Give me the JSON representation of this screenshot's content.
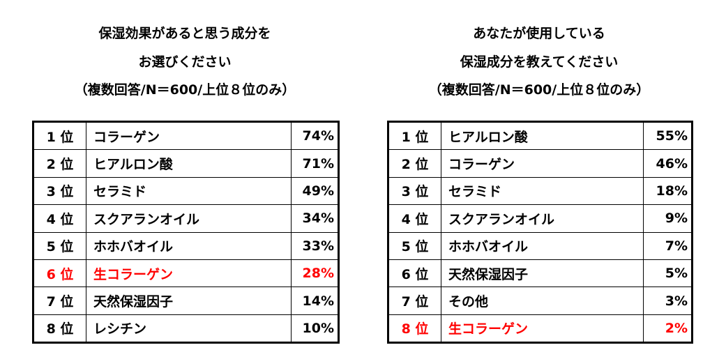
{
  "highlight_color": "#ff0000",
  "left": {
    "title_line1": "保湿効果があると思う成分を",
    "title_line2": "お選びください",
    "title_line3": "（複数回答/N＝600/上位８位のみ）",
    "rows": [
      {
        "rank": "1 位",
        "name": "コラーゲン",
        "pct": "74%",
        "highlight": false
      },
      {
        "rank": "2 位",
        "name": "ヒアルロン酸",
        "pct": "71%",
        "highlight": false
      },
      {
        "rank": "3 位",
        "name": "セラミド",
        "pct": "49%",
        "highlight": false
      },
      {
        "rank": "4 位",
        "name": "スクアランオイル",
        "pct": "34%",
        "highlight": false
      },
      {
        "rank": "5 位",
        "name": "ホホバオイル",
        "pct": "33%",
        "highlight": false
      },
      {
        "rank": "6 位",
        "name": "生コラーゲン",
        "pct": "28%",
        "highlight": true
      },
      {
        "rank": "7 位",
        "name": "天然保湿因子",
        "pct": "14%",
        "highlight": false
      },
      {
        "rank": "8 位",
        "name": "レシチン",
        "pct": "10%",
        "highlight": false
      }
    ]
  },
  "right": {
    "title_line1": "あなたが使用している",
    "title_line2": "保湿成分を教えてください",
    "title_line3": "（複数回答/N＝600/上位８位のみ）",
    "rows": [
      {
        "rank": "1 位",
        "name": "ヒアルロン酸",
        "pct": "55%",
        "highlight": false
      },
      {
        "rank": "2 位",
        "name": "コラーゲン",
        "pct": "46%",
        "highlight": false
      },
      {
        "rank": "3 位",
        "name": "セラミド",
        "pct": "18%",
        "highlight": false
      },
      {
        "rank": "4 位",
        "name": "スクアランオイル",
        "pct": "9%",
        "highlight": false
      },
      {
        "rank": "5 位",
        "name": "ホホバオイル",
        "pct": "7%",
        "highlight": false
      },
      {
        "rank": "6 位",
        "name": "天然保湿因子",
        "pct": "5%",
        "highlight": false
      },
      {
        "rank": "7 位",
        "name": "その他",
        "pct": "3%",
        "highlight": false
      },
      {
        "rank": "8 位",
        "name": "生コラーゲン",
        "pct": "2%",
        "highlight": true
      }
    ]
  }
}
